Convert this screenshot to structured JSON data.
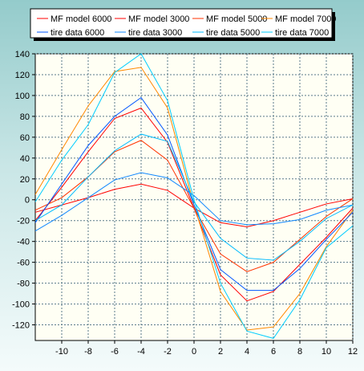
{
  "chart_data": {
    "type": "line",
    "title": "",
    "xlabel": "",
    "ylabel": "",
    "xlim": [
      -12,
      12
    ],
    "ylim": [
      -135,
      140
    ],
    "x": [
      -12,
      -10,
      -8,
      -6,
      -4,
      -2,
      0,
      2,
      4,
      6,
      8,
      10,
      12
    ],
    "xticks": [
      -10,
      -8,
      -6,
      -4,
      -2,
      0,
      2,
      4,
      6,
      8,
      10,
      12
    ],
    "yticks": [
      140,
      120,
      100,
      80,
      60,
      40,
      20,
      0,
      -20,
      -40,
      -60,
      -80,
      -100,
      -120
    ],
    "grid": true,
    "legend_position": "top",
    "series": [
      {
        "name": "MF model 6000",
        "color": "#ff0000",
        "values": [
          -20,
          12,
          46,
          78,
          88,
          55,
          -8,
          -72,
          -97,
          -88,
          -62,
          -36,
          -8
        ]
      },
      {
        "name": "MF model 3000",
        "color": "#ff0000",
        "values": [
          -12,
          -5,
          2,
          10,
          15,
          9,
          -8,
          -22,
          -26,
          -20,
          -12,
          -4,
          1
        ]
      },
      {
        "name": "MF model 5000",
        "color": "#ff3300",
        "values": [
          -10,
          2,
          22,
          46,
          57,
          38,
          -8,
          -52,
          -69,
          -60,
          -38,
          -16,
          1
        ]
      },
      {
        "name": "MF model 7000",
        "color": "#ff8800",
        "values": [
          5,
          48,
          90,
          123,
          127,
          88,
          -5,
          -88,
          -125,
          -122,
          -90,
          -45,
          -10
        ]
      },
      {
        "name": "tire data 6000",
        "color": "#0055ff",
        "values": [
          -22,
          15,
          52,
          80,
          98,
          62,
          -5,
          -67,
          -87,
          -87,
          -66,
          -38,
          -12
        ]
      },
      {
        "name": "tire data 3000",
        "color": "#1188ff",
        "values": [
          -30,
          -15,
          2,
          19,
          26,
          21,
          4,
          -20,
          -24,
          -23,
          -19,
          -10,
          -5
        ]
      },
      {
        "name": "tire data 5000",
        "color": "#00bbff",
        "values": [
          -20,
          -5,
          22,
          47,
          63,
          56,
          -2,
          -37,
          -56,
          -58,
          -40,
          -18,
          -5
        ]
      },
      {
        "name": "tire data 7000",
        "color": "#00ccff",
        "values": [
          -2,
          38,
          72,
          122,
          140,
          95,
          0,
          -80,
          -126,
          -133,
          -96,
          -46,
          -25
        ]
      }
    ]
  }
}
